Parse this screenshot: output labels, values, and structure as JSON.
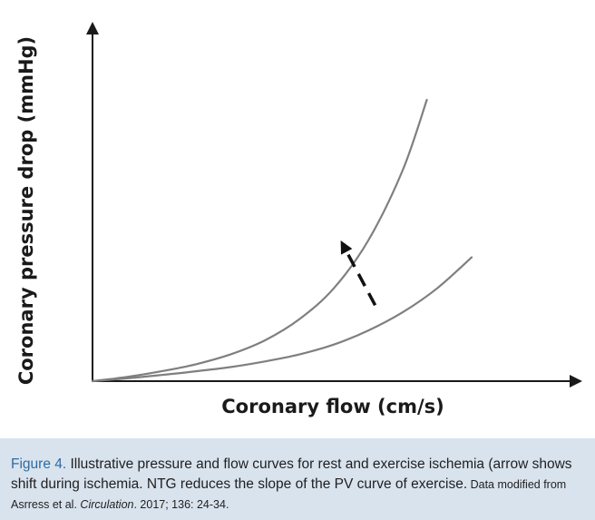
{
  "chart_data": {
    "type": "line",
    "title": "",
    "xlabel": "Coronary flow (cm/s)",
    "ylabel": "Coronary pressure drop (mmHg)",
    "xlim": [
      0,
      10
    ],
    "ylim": [
      0,
      10
    ],
    "grid": false,
    "legend": "none",
    "series": [
      {
        "x": [
          0,
          1,
          2,
          3,
          4,
          5,
          6,
          7,
          8,
          9,
          9.7
        ],
        "values": [
          0,
          0.15,
          0.35,
          0.6,
          0.95,
          1.45,
          2.2,
          3.3,
          5.0,
          7.5,
          10.0
        ]
      },
      {
        "x": [
          0,
          1,
          2,
          3,
          4,
          5,
          6,
          7,
          8,
          9,
          10,
          11
        ],
        "values": [
          0,
          0.1,
          0.22,
          0.35,
          0.5,
          0.7,
          0.95,
          1.3,
          1.8,
          2.45,
          3.3,
          4.4
        ]
      }
    ],
    "annotations": [
      {
        "type": "dashed-arrow",
        "from": [
          8.2,
          2.7
        ],
        "to": [
          7.2,
          5.0
        ]
      }
    ],
    "colors": {
      "curve": "#7f7f7f",
      "axis": "#1a1a1a",
      "arrow": "#111111"
    }
  },
  "caption": {
    "figure_label": "Figure 4.",
    "text": " Illustrative pressure and flow curves for rest and exercise ischemia (arrow shows shift during ischemia. NTG reduces the slope of the PV curve of exercise.",
    "source_prefix": " Data modified from Asrress et al. ",
    "source_journal": "Circulation",
    "source_suffix": ". 2017; 136: 24-34.",
    "background": "#d9e3ee",
    "label_color": "#2f6aa3"
  }
}
